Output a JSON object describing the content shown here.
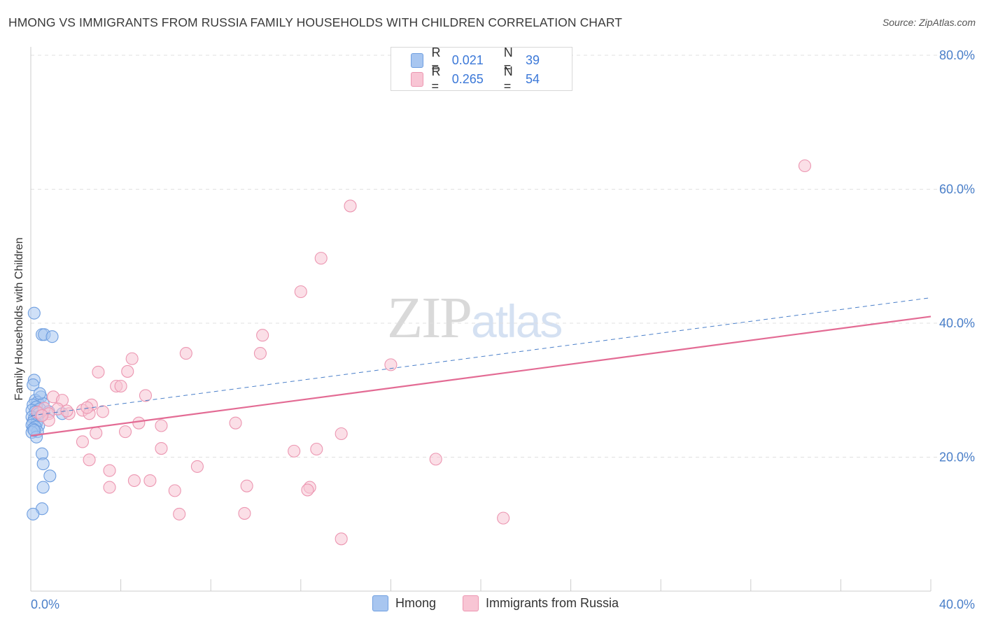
{
  "title": "HMONG VS IMMIGRANTS FROM RUSSIA FAMILY HOUSEHOLDS WITH CHILDREN CORRELATION CHART",
  "source": "Source: ZipAtlas.com",
  "watermark": {
    "zip": "ZIP",
    "atlas": "atlas"
  },
  "legend": {
    "rows": [
      {
        "r_label": "R =",
        "r_value": "0.021",
        "n_label": "N =",
        "n_value": "39",
        "color": "#a8c6f0",
        "border": "#6e9ee0"
      },
      {
        "r_label": "R =",
        "r_value": "0.265",
        "n_label": "N =",
        "n_value": "54",
        "color": "#f8c5d4",
        "border": "#ec96b1"
      }
    ]
  },
  "bottom_legend": [
    {
      "label": "Hmong",
      "color": "#a8c6f0",
      "border": "#6e9ee0"
    },
    {
      "label": "Immigrants from Russia",
      "color": "#f8c5d4",
      "border": "#ec96b1"
    }
  ],
  "chart_data": {
    "type": "scatter",
    "title": "HMONG VS IMMIGRANTS FROM RUSSIA FAMILY HOUSEHOLDS WITH CHILDREN CORRELATION CHART",
    "xlabel": "",
    "ylabel": "Family Households with Children",
    "xlim": [
      0,
      40
    ],
    "ylim": [
      0,
      80
    ],
    "x_tick_labels": [
      {
        "value": 0,
        "label": "0.0%"
      },
      {
        "value": 40,
        "label": "40.0%"
      }
    ],
    "y_tick_labels": [
      {
        "value": 20,
        "label": "20.0%"
      },
      {
        "value": 40,
        "label": "40.0%"
      },
      {
        "value": 60,
        "label": "60.0%"
      },
      {
        "value": 80,
        "label": "80.0%"
      }
    ],
    "series": [
      {
        "name": "Hmong",
        "color": "#a8c6f0",
        "edge": "#6e9ee0",
        "points": [
          [
            0.15,
            41.5
          ],
          [
            0.5,
            38.3
          ],
          [
            0.6,
            38.3
          ],
          [
            0.95,
            38.0
          ],
          [
            0.15,
            31.5
          ],
          [
            0.1,
            30.8
          ],
          [
            0.45,
            29.0
          ],
          [
            0.2,
            28.5
          ],
          [
            0.3,
            28.2
          ],
          [
            0.55,
            28.0
          ],
          [
            0.1,
            27.8
          ],
          [
            0.25,
            27.5
          ],
          [
            0.4,
            27.2
          ],
          [
            0.05,
            27.0
          ],
          [
            0.2,
            26.8
          ],
          [
            0.8,
            26.8
          ],
          [
            0.35,
            26.5
          ],
          [
            0.05,
            26.0
          ],
          [
            0.15,
            25.7
          ],
          [
            0.3,
            25.5
          ],
          [
            0.1,
            25.2
          ],
          [
            0.25,
            25.0
          ],
          [
            0.05,
            24.8
          ],
          [
            0.35,
            24.7
          ],
          [
            0.2,
            24.5
          ],
          [
            0.1,
            24.2
          ],
          [
            0.3,
            23.8
          ],
          [
            0.05,
            23.7
          ],
          [
            0.25,
            23.0
          ],
          [
            1.4,
            26.5
          ],
          [
            0.5,
            20.5
          ],
          [
            0.55,
            19.0
          ],
          [
            0.85,
            17.2
          ],
          [
            0.55,
            15.5
          ],
          [
            0.5,
            12.3
          ],
          [
            0.1,
            11.5
          ],
          [
            0.4,
            29.5
          ],
          [
            0.15,
            24.0
          ],
          [
            0.45,
            26.2
          ]
        ],
        "trend": {
          "x0": 0,
          "y0": 26.2,
          "x1": 40,
          "y1": 43.8,
          "style": "dashed"
        }
      },
      {
        "name": "Immigrants from Russia",
        "color": "#f8c5d4",
        "edge": "#ec96b1",
        "points": [
          [
            34.4,
            63.5
          ],
          [
            14.2,
            57.5
          ],
          [
            12.9,
            49.7
          ],
          [
            12.0,
            44.7
          ],
          [
            10.3,
            38.2
          ],
          [
            10.2,
            35.5
          ],
          [
            6.9,
            35.5
          ],
          [
            16.0,
            33.8
          ],
          [
            4.5,
            34.7
          ],
          [
            3.0,
            32.7
          ],
          [
            4.3,
            32.8
          ],
          [
            3.8,
            30.6
          ],
          [
            4.0,
            30.6
          ],
          [
            5.1,
            29.2
          ],
          [
            1.0,
            29.0
          ],
          [
            1.4,
            28.5
          ],
          [
            2.7,
            27.8
          ],
          [
            0.6,
            27.3
          ],
          [
            2.3,
            27.0
          ],
          [
            3.2,
            26.8
          ],
          [
            1.2,
            27.2
          ],
          [
            0.3,
            26.7
          ],
          [
            0.8,
            26.5
          ],
          [
            2.6,
            26.5
          ],
          [
            1.7,
            26.5
          ],
          [
            0.8,
            25.5
          ],
          [
            4.8,
            25.1
          ],
          [
            9.1,
            25.1
          ],
          [
            5.8,
            24.7
          ],
          [
            4.2,
            23.8
          ],
          [
            2.9,
            23.6
          ],
          [
            13.8,
            23.5
          ],
          [
            2.3,
            22.3
          ],
          [
            5.8,
            21.3
          ],
          [
            12.7,
            21.2
          ],
          [
            11.7,
            20.9
          ],
          [
            2.6,
            19.6
          ],
          [
            18.0,
            19.7
          ],
          [
            7.4,
            18.6
          ],
          [
            3.5,
            18.0
          ],
          [
            4.6,
            16.5
          ],
          [
            5.3,
            16.5
          ],
          [
            3.5,
            15.5
          ],
          [
            9.6,
            15.7
          ],
          [
            12.4,
            15.5
          ],
          [
            12.3,
            15.1
          ],
          [
            6.4,
            15.0
          ],
          [
            9.5,
            11.6
          ],
          [
            6.6,
            11.5
          ],
          [
            21.0,
            10.9
          ],
          [
            13.8,
            7.8
          ],
          [
            1.6,
            26.9
          ],
          [
            2.5,
            27.4
          ],
          [
            0.5,
            26.2
          ]
        ],
        "trend": {
          "x0": 0,
          "y0": 23.2,
          "x1": 40,
          "y1": 41.0,
          "style": "solid"
        }
      }
    ]
  }
}
